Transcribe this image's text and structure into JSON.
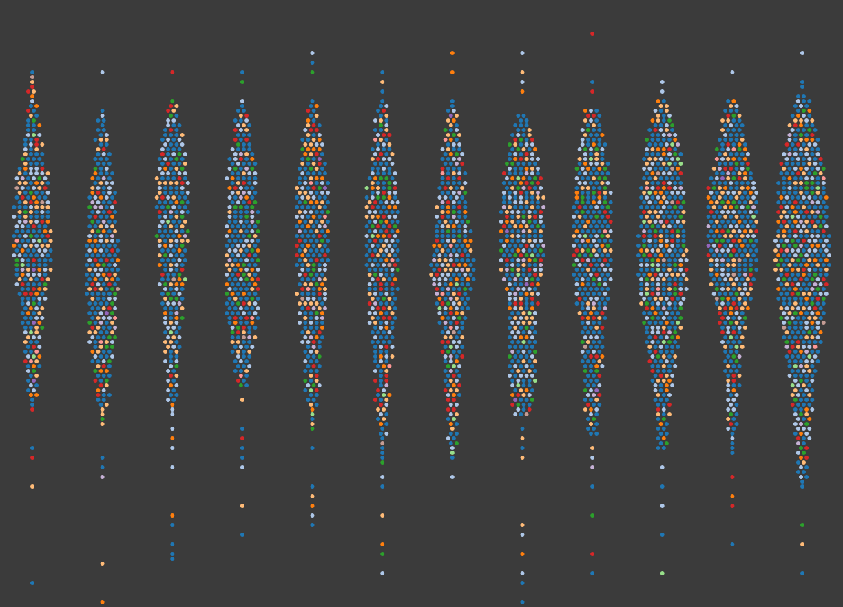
{
  "chart_data": {
    "type": "swarm",
    "title": "",
    "xlabel": "",
    "ylabel": "",
    "ylim": [
      0,
      126
    ],
    "grid": false,
    "legend": "none",
    "background_color": "#3b3b3b",
    "hue_palette": [
      {
        "color": "#1f77b4",
        "share": 0.44
      },
      {
        "color": "#aec7e8",
        "share": 0.19
      },
      {
        "color": "#ffbb78",
        "share": 0.12
      },
      {
        "color": "#ff7f0e",
        "share": 0.07
      },
      {
        "color": "#d62728",
        "share": 0.07
      },
      {
        "color": "#2ca02c",
        "share": 0.06
      },
      {
        "color": "#c5b0d5",
        "share": 0.02
      },
      {
        "color": "#98df8a",
        "share": 0.01
      },
      {
        "color": "#ff9896",
        "share": 0.01
      },
      {
        "color": "#9467bd",
        "share": 0.005
      },
      {
        "color": "#c49c94",
        "share": 0.005
      }
    ],
    "columns": [
      {
        "profile": [
          [
            111,
            1
          ],
          [
            102,
            2
          ],
          [
            93,
            4
          ],
          [
            89,
            6
          ],
          [
            73,
            7
          ],
          [
            65,
            5
          ],
          [
            55,
            3
          ],
          [
            46,
            2
          ],
          [
            41,
            1
          ]
        ],
        "outliers": [
          33,
          31,
          25,
          5
        ]
      },
      {
        "profile": [
          [
            103,
            1
          ],
          [
            93,
            3
          ],
          [
            83,
            5
          ],
          [
            69,
            6
          ],
          [
            60,
            5
          ],
          [
            52,
            4
          ],
          [
            43,
            2
          ],
          [
            38,
            1
          ]
        ],
        "outliers": [
          111,
          31,
          29,
          27,
          9,
          1
        ]
      },
      {
        "profile": [
          [
            105,
            1
          ],
          [
            97,
            4
          ],
          [
            85,
            6
          ],
          [
            72,
            5
          ],
          [
            62,
            4
          ],
          [
            55,
            3
          ],
          [
            40,
            1
          ]
        ],
        "outliers": [
          111,
          37,
          35,
          33,
          29,
          19,
          17,
          13,
          11,
          10
        ]
      },
      {
        "profile": [
          [
            105,
            1
          ],
          [
            92,
            5
          ],
          [
            77,
            6
          ],
          [
            62,
            6
          ],
          [
            55,
            4
          ],
          [
            46,
            2
          ]
        ],
        "outliers": [
          111,
          109,
          43,
          37,
          35,
          33,
          31,
          29,
          21,
          15
        ]
      },
      {
        "profile": [
          [
            105,
            1
          ],
          [
            92,
            5
          ],
          [
            83,
            6
          ],
          [
            75,
            6
          ],
          [
            62,
            5
          ],
          [
            52,
            3
          ],
          [
            43,
            2
          ],
          [
            37,
            1
          ]
        ],
        "outliers": [
          115,
          113,
          111,
          33,
          25,
          23,
          21,
          19,
          17
        ]
      },
      {
        "profile": [
          [
            105,
            1
          ],
          [
            102,
            2
          ],
          [
            85,
            6
          ],
          [
            72,
            6
          ],
          [
            62,
            5
          ],
          [
            50,
            3
          ],
          [
            40,
            2
          ],
          [
            30,
            1
          ]
        ],
        "outliers": [
          111,
          109,
          107,
          27,
          25,
          19,
          13,
          11,
          7
        ]
      },
      {
        "profile": [
          [
            105,
            1
          ],
          [
            93,
            4
          ],
          [
            79,
            6
          ],
          [
            69,
            8
          ],
          [
            60,
            5
          ],
          [
            49,
            3
          ],
          [
            40,
            2
          ],
          [
            31,
            1
          ]
        ],
        "outliers": [
          115,
          111,
          27
        ]
      },
      {
        "profile": [
          [
            102,
            2
          ],
          [
            89,
            7
          ],
          [
            72,
            8
          ],
          [
            62,
            5
          ],
          [
            49,
            5
          ],
          [
            40,
            3
          ]
        ],
        "outliers": [
          115,
          111,
          109,
          107,
          37,
          35,
          33,
          31,
          17,
          15,
          11,
          7,
          5,
          1
        ]
      },
      {
        "profile": [
          [
            103,
            3
          ],
          [
            83,
            7
          ],
          [
            69,
            7
          ],
          [
            57,
            4
          ],
          [
            46,
            3
          ],
          [
            36,
            2
          ]
        ],
        "outliers": [
          119,
          109,
          107,
          33,
          31,
          29,
          25,
          19,
          11,
          7
        ]
      },
      {
        "profile": [
          [
            105,
            2
          ],
          [
            97,
            6
          ],
          [
            83,
            8
          ],
          [
            69,
            9
          ],
          [
            55,
            6
          ],
          [
            43,
            3
          ],
          [
            33,
            2
          ]
        ],
        "outliers": [
          109,
          107,
          29,
          25,
          21,
          15,
          7
        ]
      },
      {
        "profile": [
          [
            105,
            2
          ],
          [
            97,
            5
          ],
          [
            86,
            9
          ],
          [
            72,
            9
          ],
          [
            62,
            6
          ],
          [
            52,
            3
          ],
          [
            40,
            2
          ],
          [
            32,
            1
          ]
        ],
        "outliers": [
          111,
          27,
          23,
          21,
          13
        ]
      },
      {
        "profile": [
          [
            106,
            2
          ],
          [
            92,
            8
          ],
          [
            72,
            10
          ],
          [
            60,
            8
          ],
          [
            49,
            5
          ],
          [
            37,
            3
          ],
          [
            25,
            1
          ]
        ],
        "outliers": [
          115,
          109,
          108,
          17,
          13,
          7
        ]
      }
    ]
  }
}
